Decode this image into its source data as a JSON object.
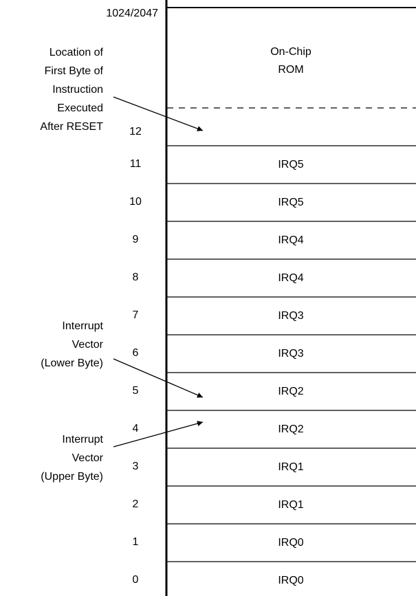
{
  "top_label": "1024/2047",
  "rom_label": [
    "On-Chip",
    "ROM"
  ],
  "reset_address": "12",
  "rows": [
    {
      "address": "11",
      "label": "IRQ5"
    },
    {
      "address": "10",
      "label": "IRQ5"
    },
    {
      "address": "9",
      "label": "IRQ4"
    },
    {
      "address": "8",
      "label": "IRQ4"
    },
    {
      "address": "7",
      "label": "IRQ3"
    },
    {
      "address": "6",
      "label": "IRQ3"
    },
    {
      "address": "5",
      "label": "IRQ2"
    },
    {
      "address": "4",
      "label": "IRQ2"
    },
    {
      "address": "3",
      "label": "IRQ1"
    },
    {
      "address": "2",
      "label": "IRQ1"
    },
    {
      "address": "1",
      "label": "IRQ0"
    },
    {
      "address": "0",
      "label": "IRQ0"
    }
  ],
  "annotations": [
    {
      "lines": [
        "Location of",
        "First Byte of",
        "Instruction",
        "Executed",
        "After RESET"
      ]
    },
    {
      "lines": [
        "Interrupt",
        "Vector",
        "(Lower Byte)"
      ]
    },
    {
      "lines": [
        "Interrupt",
        "Vector",
        "(Upper Byte)"
      ]
    }
  ]
}
